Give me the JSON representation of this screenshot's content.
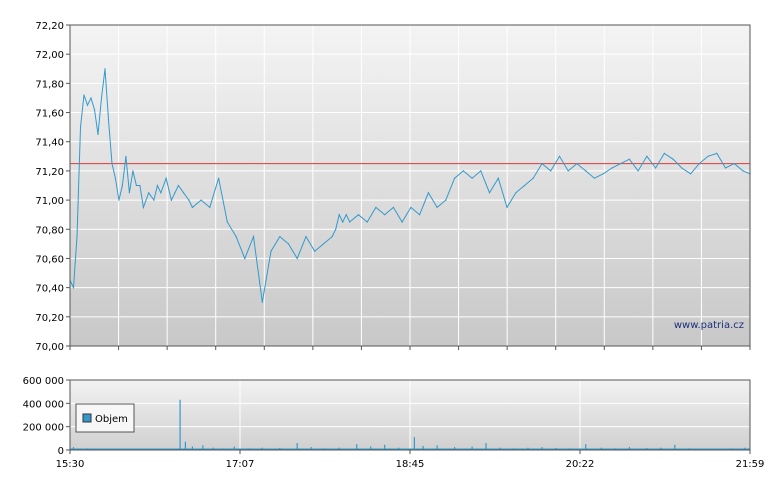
{
  "watermark": "www.patria.cz",
  "colors": {
    "line": "#3399cc",
    "reference": "#e03a3a",
    "volume": "#3399cc",
    "grid": "#ffffff"
  },
  "chart_data": [
    {
      "type": "line",
      "title": "",
      "xlabel": "",
      "ylabel": "",
      "ylim": [
        70.0,
        72.2
      ],
      "y_ticks": [
        "70,00",
        "70,20",
        "70,40",
        "70,60",
        "70,80",
        "71,00",
        "71,20",
        "71,40",
        "71,60",
        "71,80",
        "72,00",
        "72,20"
      ],
      "x_range": [
        "15:30",
        "21:59"
      ],
      "reference_line": 71.25,
      "grid": true,
      "series": [
        {
          "name": "",
          "x": [
            "15:30",
            "15:32",
            "15:34",
            "15:36",
            "15:38",
            "15:40",
            "15:42",
            "15:44",
            "15:46",
            "15:48",
            "15:50",
            "15:52",
            "15:54",
            "15:56",
            "15:58",
            "16:00",
            "16:02",
            "16:04",
            "16:06",
            "16:08",
            "16:10",
            "16:12",
            "16:15",
            "16:18",
            "16:20",
            "16:22",
            "16:25",
            "16:28",
            "16:30",
            "16:32",
            "16:35",
            "16:38",
            "16:40",
            "16:45",
            "16:50",
            "16:55",
            "17:00",
            "17:05",
            "17:10",
            "17:15",
            "17:20",
            "17:25",
            "17:30",
            "17:35",
            "17:40",
            "17:45",
            "17:50",
            "17:55",
            "18:00",
            "18:02",
            "18:04",
            "18:06",
            "18:08",
            "18:10",
            "18:15",
            "18:20",
            "18:25",
            "18:30",
            "18:35",
            "18:40",
            "18:45",
            "18:50",
            "18:55",
            "19:00",
            "19:05",
            "19:10",
            "19:15",
            "19:20",
            "19:25",
            "19:30",
            "19:35",
            "19:40",
            "19:45",
            "19:50",
            "19:55",
            "20:00",
            "20:05",
            "20:10",
            "20:15",
            "20:20",
            "20:25",
            "20:30",
            "20:35",
            "20:40",
            "20:45",
            "20:50",
            "20:55",
            "21:00",
            "21:05",
            "21:10",
            "21:15",
            "21:20",
            "21:25",
            "21:30",
            "21:35",
            "21:40",
            "21:45",
            "21:50",
            "21:55",
            "21:59"
          ],
          "values": [
            70.45,
            70.4,
            70.75,
            71.5,
            71.72,
            71.65,
            71.7,
            71.62,
            71.45,
            71.7,
            71.9,
            71.55,
            71.25,
            71.15,
            71.0,
            71.1,
            71.3,
            71.05,
            71.2,
            71.1,
            71.1,
            70.95,
            71.05,
            71.0,
            71.1,
            71.05,
            71.15,
            71.0,
            71.05,
            71.1,
            71.05,
            71.0,
            70.95,
            71.0,
            70.95,
            71.15,
            70.85,
            70.75,
            70.6,
            70.75,
            70.3,
            70.65,
            70.75,
            70.7,
            70.6,
            70.75,
            70.65,
            70.7,
            70.75,
            70.8,
            70.9,
            70.85,
            70.9,
            70.85,
            70.9,
            70.85,
            70.95,
            70.9,
            70.95,
            70.85,
            70.95,
            70.9,
            71.05,
            70.95,
            71.0,
            71.15,
            71.2,
            71.15,
            71.2,
            71.05,
            71.15,
            70.95,
            71.05,
            71.1,
            71.15,
            71.25,
            71.2,
            71.3,
            71.2,
            71.25,
            71.2,
            71.15,
            71.18,
            71.22,
            71.25,
            71.28,
            71.2,
            71.3,
            71.22,
            71.32,
            71.28,
            71.22,
            71.18,
            71.25,
            71.3,
            71.32,
            71.22,
            71.25,
            71.2,
            71.18
          ]
        }
      ]
    },
    {
      "type": "bar",
      "title": "",
      "ylim": [
        0,
        600000
      ],
      "y_ticks": [
        "0",
        "200 000",
        "400 000",
        "600 000"
      ],
      "x_ticks": [
        "15:30",
        "17:07",
        "18:45",
        "20:22",
        "21:59"
      ],
      "legend": {
        "label": "Objem",
        "placement": "bottom-left"
      },
      "grid": true,
      "series": [
        {
          "name": "Objem",
          "bars": [
            {
              "x": "15:32",
              "value": 25000
            },
            {
              "x": "15:40",
              "value": 15000
            },
            {
              "x": "15:50",
              "value": 12000
            },
            {
              "x": "16:00",
              "value": 10000
            },
            {
              "x": "16:10",
              "value": 8000
            },
            {
              "x": "16:20",
              "value": 12000
            },
            {
              "x": "16:33",
              "value": 430000
            },
            {
              "x": "16:36",
              "value": 70000
            },
            {
              "x": "16:40",
              "value": 30000
            },
            {
              "x": "16:46",
              "value": 40000
            },
            {
              "x": "16:52",
              "value": 20000
            },
            {
              "x": "16:58",
              "value": 15000
            },
            {
              "x": "17:04",
              "value": 30000
            },
            {
              "x": "17:12",
              "value": 15000
            },
            {
              "x": "17:20",
              "value": 20000
            },
            {
              "x": "17:30",
              "value": 18000
            },
            {
              "x": "17:40",
              "value": 60000
            },
            {
              "x": "17:48",
              "value": 25000
            },
            {
              "x": "17:56",
              "value": 15000
            },
            {
              "x": "18:04",
              "value": 20000
            },
            {
              "x": "18:14",
              "value": 50000
            },
            {
              "x": "18:22",
              "value": 30000
            },
            {
              "x": "18:30",
              "value": 45000
            },
            {
              "x": "18:38",
              "value": 20000
            },
            {
              "x": "18:47",
              "value": 110000
            },
            {
              "x": "18:52",
              "value": 35000
            },
            {
              "x": "19:00",
              "value": 40000
            },
            {
              "x": "19:10",
              "value": 25000
            },
            {
              "x": "19:20",
              "value": 30000
            },
            {
              "x": "19:28",
              "value": 60000
            },
            {
              "x": "19:36",
              "value": 20000
            },
            {
              "x": "19:44",
              "value": 15000
            },
            {
              "x": "19:52",
              "value": 20000
            },
            {
              "x": "20:00",
              "value": 25000
            },
            {
              "x": "20:08",
              "value": 18000
            },
            {
              "x": "20:16",
              "value": 15000
            },
            {
              "x": "20:25",
              "value": 50000
            },
            {
              "x": "20:34",
              "value": 20000
            },
            {
              "x": "20:42",
              "value": 15000
            },
            {
              "x": "20:50",
              "value": 25000
            },
            {
              "x": "21:00",
              "value": 18000
            },
            {
              "x": "21:08",
              "value": 20000
            },
            {
              "x": "21:16",
              "value": 45000
            },
            {
              "x": "21:24",
              "value": 15000
            },
            {
              "x": "21:32",
              "value": 12000
            },
            {
              "x": "21:40",
              "value": 10000
            },
            {
              "x": "21:48",
              "value": 15000
            },
            {
              "x": "21:56",
              "value": 20000
            }
          ]
        }
      ]
    }
  ]
}
